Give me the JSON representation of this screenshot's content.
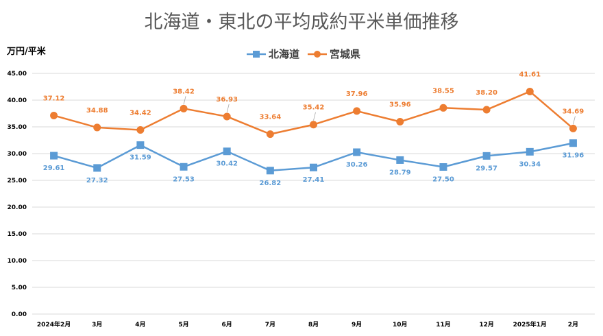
{
  "chart_data": {
    "type": "line",
    "title": "北海道・東北の平均成約平米単価推移",
    "ylabel": "万円/平米",
    "xlabel": "",
    "categories": [
      "2024年2月",
      "3月",
      "4月",
      "5月",
      "6月",
      "7月",
      "8月",
      "9月",
      "10月",
      "11月",
      "12月",
      "2025年1月",
      "2月"
    ],
    "ylim": [
      0,
      45
    ],
    "yticks": [
      "0.00",
      "5.00",
      "10.00",
      "15.00",
      "20.00",
      "25.00",
      "30.00",
      "35.00",
      "40.00",
      "45.00"
    ],
    "grid": true,
    "legend_position": "top",
    "series": [
      {
        "name": "北海道",
        "color": "#5b9bd5",
        "marker": "square",
        "values": [
          29.61,
          27.32,
          31.59,
          27.53,
          30.42,
          26.82,
          27.41,
          30.26,
          28.79,
          27.5,
          29.57,
          30.34,
          31.96
        ],
        "labels": [
          "29.61",
          "27.32",
          "31.59",
          "27.53",
          "30.42",
          "26.82",
          "27.41",
          "30.26",
          "28.79",
          "27.50",
          "29.57",
          "30.34",
          "31.96"
        ]
      },
      {
        "name": "宮城県",
        "color": "#ed7d31",
        "marker": "circle",
        "values": [
          37.12,
          34.88,
          34.42,
          38.42,
          36.93,
          33.64,
          35.42,
          37.96,
          35.96,
          38.55,
          38.2,
          41.61,
          34.69
        ],
        "labels": [
          "37.12",
          "34.88",
          "34.42",
          "38.42",
          "36.93",
          "33.64",
          "35.42",
          "37.96",
          "35.96",
          "38.55",
          "38.20",
          "41.61",
          "34.69"
        ]
      }
    ]
  }
}
